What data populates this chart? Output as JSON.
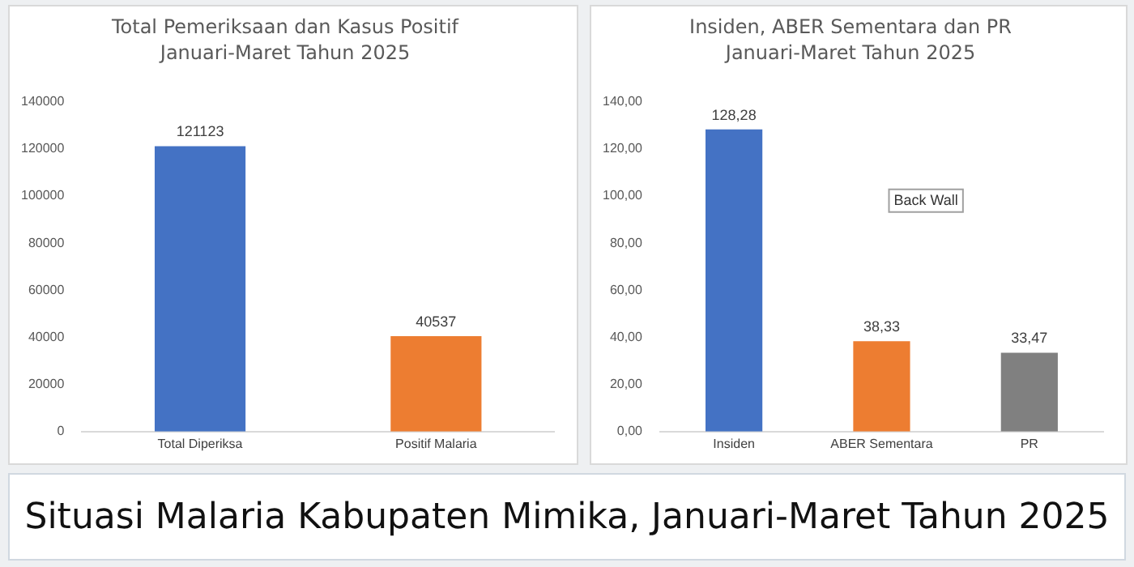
{
  "chart_data": [
    {
      "type": "bar",
      "title": "Total Pemeriksaan dan Kasus Positif",
      "subtitle": "Januari-Maret Tahun 2025",
      "categories": [
        "Total Diperiksa",
        "Positif Malaria"
      ],
      "values": [
        121123,
        40537
      ],
      "colors": [
        "#4472c4",
        "#ed7d31"
      ],
      "ylim": [
        0,
        140000
      ],
      "yticks": [
        0,
        20000,
        40000,
        60000,
        80000,
        100000,
        120000,
        140000
      ],
      "data_labels": true,
      "grid": false,
      "legend": false
    },
    {
      "type": "bar",
      "title": "Insiden, ABER Sementara dan PR",
      "subtitle": "Januari-Maret Tahun 2025",
      "categories": [
        "Insiden",
        "ABER Sementara",
        "PR"
      ],
      "values": [
        128.28,
        38.33,
        33.47
      ],
      "value_labels": [
        "128,28",
        "38,33",
        "33,47"
      ],
      "colors": [
        "#4472c4",
        "#ed7d31",
        "#808080"
      ],
      "ylim": [
        0,
        140
      ],
      "yticks": [
        {
          "value": 0,
          "label": "0,00"
        },
        {
          "value": 20,
          "label": "20,00"
        },
        {
          "value": 40,
          "label": "40,00"
        },
        {
          "value": 60,
          "label": "60,00"
        },
        {
          "value": 80,
          "label": "80,00"
        },
        {
          "value": 100,
          "label": "100,00"
        },
        {
          "value": 120,
          "label": "120,00"
        },
        {
          "value": 140,
          "label": "140,00"
        }
      ],
      "annotations": [
        "Back Wall"
      ],
      "grid": false,
      "legend": false
    },
    {
      "type": "other",
      "title": "Situasi Malaria Kabupaten Mimika, Januari-Maret Tahun 2025"
    }
  ]
}
